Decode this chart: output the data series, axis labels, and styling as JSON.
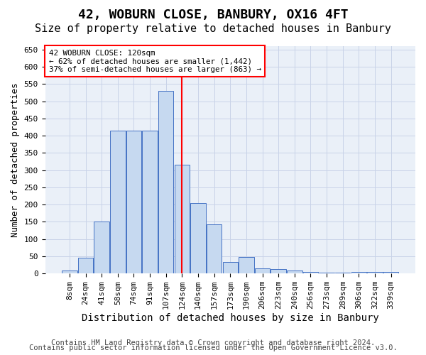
{
  "title": "42, WOBURN CLOSE, BANBURY, OX16 4FT",
  "subtitle": "Size of property relative to detached houses in Banbury",
  "xlabel": "Distribution of detached houses by size in Banbury",
  "ylabel": "Number of detached properties",
  "categories": [
    "8sqm",
    "24sqm",
    "41sqm",
    "58sqm",
    "74sqm",
    "91sqm",
    "107sqm",
    "124sqm",
    "140sqm",
    "157sqm",
    "173sqm",
    "190sqm",
    "206sqm",
    "223sqm",
    "240sqm",
    "256sqm",
    "273sqm",
    "289sqm",
    "306sqm",
    "322sqm",
    "339sqm"
  ],
  "values": [
    8,
    45,
    150,
    415,
    415,
    415,
    530,
    315,
    205,
    142,
    33,
    48,
    15,
    13,
    9,
    4,
    2,
    2,
    5,
    5,
    5
  ],
  "bar_color": "#c6d9f0",
  "bar_edge_color": "#4472c4",
  "vline_x": 7,
  "vline_color": "#ff0000",
  "ylim": [
    0,
    660
  ],
  "yticks": [
    0,
    50,
    100,
    150,
    200,
    250,
    300,
    350,
    400,
    450,
    500,
    550,
    600,
    650
  ],
  "annotation_title": "42 WOBURN CLOSE: 120sqm",
  "annotation_line1": "← 62% of detached houses are smaller (1,442)",
  "annotation_line2": "37% of semi-detached houses are larger (863) →",
  "annotation_box_color": "#ffffff",
  "annotation_border_color": "#ff0000",
  "background_color": "#ffffff",
  "ax_facecolor": "#eaf0f8",
  "grid_color": "#c8d3e8",
  "footer1": "Contains HM Land Registry data © Crown copyright and database right 2024.",
  "footer2": "Contains public sector information licensed under the Open Government Licence v3.0.",
  "title_fontsize": 13,
  "subtitle_fontsize": 11,
  "xlabel_fontsize": 10,
  "ylabel_fontsize": 9,
  "tick_fontsize": 8,
  "footer_fontsize": 7.5
}
